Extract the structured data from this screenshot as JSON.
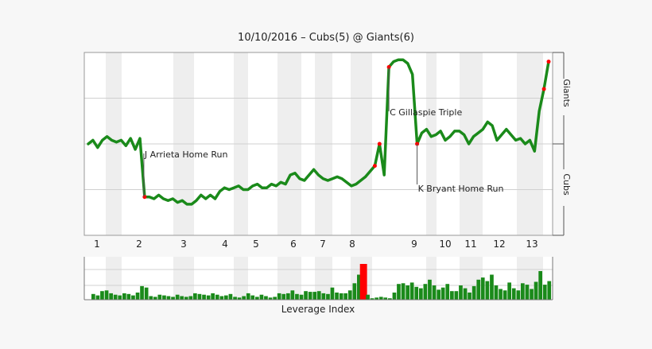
{
  "chart_data": [
    {
      "type": "line",
      "title": "10/10/2016 – Cubs(5) @ Giants(6)",
      "xlabel": "",
      "ylabel": "",
      "y_top_team": "Giants",
      "y_bottom_team": "Cubs",
      "innings": [
        "1",
        "2",
        "3",
        "4",
        "5",
        "6",
        "7",
        "8",
        "9",
        "10",
        "11",
        "12",
        "13"
      ],
      "ylim": [
        0,
        100
      ],
      "grid": "horizontal",
      "series": [
        {
          "color": "#1a8a1a",
          "values": [
            [
              0,
              50
            ],
            [
              1,
              52
            ],
            [
              2,
              48
            ],
            [
              3,
              52
            ],
            [
              4,
              54
            ],
            [
              5,
              52
            ],
            [
              6,
              51
            ],
            [
              7,
              52
            ],
            [
              8,
              49
            ],
            [
              9,
              53
            ],
            [
              10,
              47
            ],
            [
              11,
              53
            ],
            [
              12,
              21
            ],
            [
              13,
              21
            ],
            [
              14,
              20
            ],
            [
              15,
              22
            ],
            [
              16,
              20
            ],
            [
              17,
              19
            ],
            [
              18,
              20
            ],
            [
              19,
              18
            ],
            [
              20,
              19
            ],
            [
              21,
              17
            ],
            [
              22,
              17
            ],
            [
              23,
              19
            ],
            [
              24,
              22
            ],
            [
              25,
              20
            ],
            [
              26,
              22
            ],
            [
              27,
              20
            ],
            [
              28,
              24
            ],
            [
              29,
              26
            ],
            [
              30,
              25
            ],
            [
              31,
              26
            ],
            [
              32,
              27
            ],
            [
              33,
              25
            ],
            [
              34,
              25
            ],
            [
              35,
              27
            ],
            [
              36,
              28
            ],
            [
              37,
              26
            ],
            [
              38,
              26
            ],
            [
              39,
              28
            ],
            [
              40,
              27
            ],
            [
              41,
              29
            ],
            [
              42,
              28
            ],
            [
              43,
              33
            ],
            [
              44,
              34
            ],
            [
              45,
              31
            ],
            [
              46,
              30
            ],
            [
              47,
              33
            ],
            [
              48,
              36
            ],
            [
              49,
              33
            ],
            [
              50,
              31
            ],
            [
              51,
              30
            ],
            [
              52,
              31
            ],
            [
              53,
              32
            ],
            [
              54,
              31
            ],
            [
              55,
              29
            ],
            [
              56,
              27
            ],
            [
              57,
              28
            ],
            [
              58,
              30
            ],
            [
              59,
              32
            ],
            [
              60,
              35
            ],
            [
              61,
              38
            ],
            [
              62,
              50
            ],
            [
              63,
              33
            ],
            [
              64,
              92
            ],
            [
              65,
              95
            ],
            [
              66,
              96
            ],
            [
              67,
              96
            ],
            [
              68,
              94
            ],
            [
              69,
              88
            ],
            [
              70,
              50
            ],
            [
              71,
              56
            ],
            [
              72,
              58
            ],
            [
              73,
              54
            ],
            [
              74,
              55
            ],
            [
              75,
              57
            ],
            [
              76,
              52
            ],
            [
              77,
              54
            ],
            [
              78,
              57
            ],
            [
              79,
              57
            ],
            [
              80,
              55
            ],
            [
              81,
              50
            ],
            [
              82,
              54
            ],
            [
              83,
              56
            ],
            [
              84,
              58
            ],
            [
              85,
              62
            ],
            [
              86,
              60
            ],
            [
              87,
              52
            ],
            [
              88,
              55
            ],
            [
              89,
              58
            ],
            [
              90,
              55
            ],
            [
              91,
              52
            ],
            [
              92,
              53
            ],
            [
              93,
              50
            ],
            [
              94,
              52
            ],
            [
              95,
              46
            ],
            [
              96,
              68
            ],
            [
              97,
              80
            ],
            [
              98,
              95
            ]
          ]
        }
      ],
      "annotations": [
        {
          "label": "J Arrieta Home Run",
          "x": 12,
          "y": 21
        },
        {
          "label": "C Gillaspie Triple",
          "x": 64,
          "y": 92
        },
        {
          "label": "K Bryant Home Run",
          "x": 70,
          "y": 50
        }
      ]
    },
    {
      "type": "bar",
      "xlabel": "Leverage Index",
      "highlight_color": "#ff0000",
      "bar_color": "#1a8a1a",
      "values": [
        0.8,
        0.6,
        1.2,
        1.3,
        0.9,
        0.7,
        0.6,
        0.9,
        0.8,
        0.6,
        1.0,
        1.9,
        1.7,
        0.5,
        0.4,
        0.7,
        0.6,
        0.5,
        0.4,
        0.7,
        0.5,
        0.4,
        0.5,
        0.9,
        0.8,
        0.7,
        0.6,
        0.9,
        0.7,
        0.5,
        0.6,
        0.8,
        0.4,
        0.3,
        0.5,
        0.9,
        0.6,
        0.4,
        0.7,
        0.5,
        0.3,
        0.4,
        0.9,
        0.8,
        0.9,
        1.3,
        0.8,
        0.7,
        1.2,
        1.1,
        1.1,
        1.2,
        0.9,
        0.8,
        1.7,
        1.0,
        0.9,
        0.9,
        1.3,
        2.3,
        3.5,
        5.0,
        0.7,
        0.2,
        0.3,
        0.4,
        0.3,
        0.2,
        1.0,
        2.2,
        2.3,
        2.0,
        2.4,
        1.8,
        1.6,
        2.2,
        2.8,
        2.0,
        1.4,
        1.7,
        2.2,
        1.2,
        1.2,
        2.0,
        1.6,
        1.0,
        1.9,
        2.8,
        3.1,
        2.6,
        3.5,
        2.0,
        1.5,
        1.3,
        2.4,
        1.6,
        1.3,
        2.3,
        2.1,
        1.5,
        2.5,
        4.0,
        2.1,
        2.6
      ],
      "highlight_index": 61
    }
  ]
}
